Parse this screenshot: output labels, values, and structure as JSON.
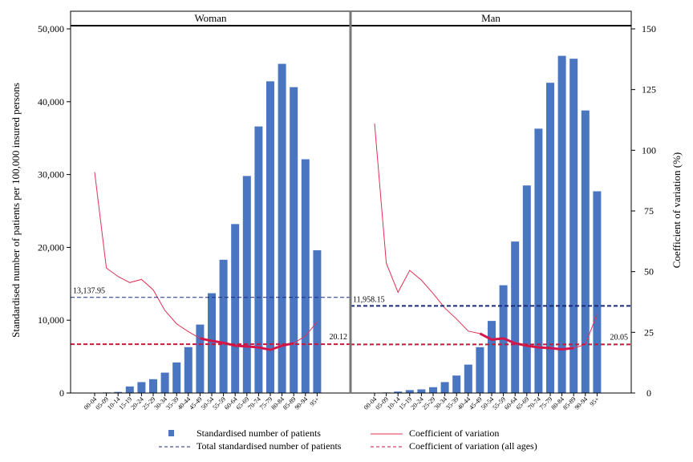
{
  "chart_data": {
    "type": "bar",
    "y_left_label": "Standardised number of patients per 100,000 insured persons",
    "y_right_label": "Coefficient of variation (%)",
    "y_left_ticks": [
      "0",
      "10,000",
      "20,000",
      "30,000",
      "40,000",
      "50,000"
    ],
    "y_right_ticks": [
      "0",
      "25",
      "50",
      "75",
      "100",
      "125",
      "150"
    ],
    "y_left_lim": [
      0,
      50000
    ],
    "y_right_lim": [
      0,
      150
    ],
    "categories": [
      "00-04",
      "05-09",
      "10-14",
      "15-19",
      "20-24",
      "25-29",
      "30-34",
      "35-39",
      "40-44",
      "45-49",
      "50-54",
      "55-59",
      "60-64",
      "65-69",
      "70-74",
      "75-79",
      "80-84",
      "85-89",
      "90-94",
      "95+"
    ],
    "panels": [
      {
        "name": "Woman",
        "bars": [
          50,
          80,
          150,
          900,
          1500,
          1900,
          2800,
          4200,
          6300,
          9400,
          13700,
          18300,
          23200,
          29800,
          36600,
          42800,
          45200,
          42000,
          32100,
          19600
        ],
        "cv": [
          91,
          51.5,
          48,
          45.5,
          46.8,
          42.5,
          34,
          28.5,
          25.3,
          22.5,
          21.5,
          20.7,
          19.5,
          19.2,
          18.8,
          17.8,
          19.5,
          20.5,
          23.5,
          29.3
        ],
        "total": 13137.95,
        "total_label": "13,137.95",
        "cv_all": 20.12,
        "cv_all_label": "20.12"
      },
      {
        "name": "Man",
        "bars": [
          50,
          80,
          200,
          400,
          500,
          800,
          1500,
          2400,
          3900,
          6300,
          9900,
          14800,
          20800,
          28500,
          36300,
          42600,
          46300,
          45900,
          38800,
          27700
        ],
        "cv": [
          111,
          53.5,
          41.5,
          50.5,
          46.5,
          41,
          35,
          30.5,
          25.5,
          24.5,
          22,
          22.5,
          20.5,
          19.5,
          18.8,
          18.5,
          18,
          18.5,
          20,
          32.5
        ],
        "total": 11958.15,
        "total_label": "11,958.15",
        "cv_all": 20.05,
        "cv_all_label": "20.05"
      }
    ],
    "legend": {
      "placement": "bottom",
      "bars": "Standardised number of patients",
      "cv": "Coefficient of variation",
      "total": "Total standardised number of patients",
      "cv_all": "Coefficient of variation (all ages)"
    },
    "colors": {
      "bar": "#4a76c1",
      "cv_line": "#e03155",
      "cv_all": "#c8173f",
      "total": "#1a2a7a",
      "highlight": "#d4174a"
    }
  }
}
